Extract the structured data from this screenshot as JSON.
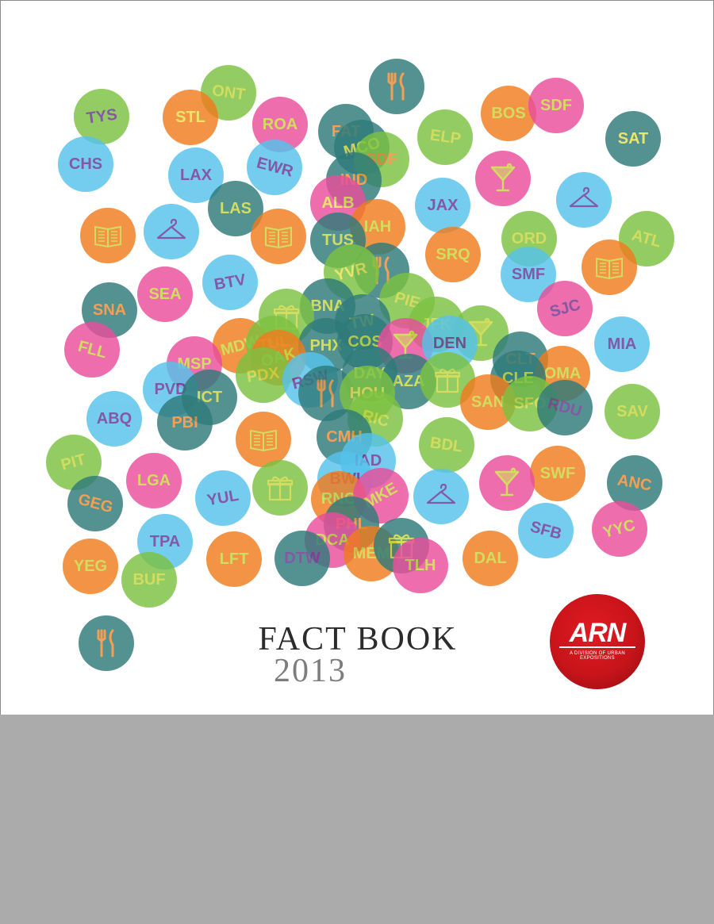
{
  "palette": {
    "orange": "#f07c1e",
    "green": "#7cc242",
    "pink": "#ea4e9c",
    "blue": "#56c3ec",
    "teal": "#2f7b7a",
    "text_purple": "#6a3591",
    "text_yellow": "#e8e04d",
    "text_olive": "#c9d53b",
    "text_orange": "#f28a2e",
    "brand_red": "#d0161c",
    "gray_band": "#ababab"
  },
  "cover": {
    "title": "FACT BOOK",
    "year": "2013",
    "logo": {
      "mark": "ARN",
      "subtitle": "A DIVISION OF URBAN EXPOSITIONS"
    }
  },
  "circles": [
    {
      "label": "TYS",
      "bg": "green",
      "fg": "text_purple"
    },
    {
      "label": "ONT",
      "bg": "green",
      "fg": "text_olive"
    },
    {
      "label": "STL",
      "bg": "orange",
      "fg": "text_yellow"
    },
    {
      "label": "ROA",
      "bg": "pink",
      "fg": "text_olive"
    },
    {
      "label": "fork-knife-icon",
      "bg": "teal",
      "fg": "text_orange"
    },
    {
      "label": "BOS",
      "bg": "orange",
      "fg": "text_olive"
    },
    {
      "label": "SDF",
      "bg": "pink",
      "fg": "text_olive"
    },
    {
      "label": "SAT",
      "bg": "teal",
      "fg": "text_yellow"
    },
    {
      "label": "CHS",
      "bg": "blue",
      "fg": "text_purple"
    },
    {
      "label": "FAT",
      "bg": "teal",
      "fg": "text_orange"
    },
    {
      "label": "MCO",
      "bg": "teal",
      "fg": "text_yellow"
    },
    {
      "label": "SDF",
      "bg": "green",
      "fg": "text_orange"
    },
    {
      "label": "ELP",
      "bg": "green",
      "fg": "text_olive"
    },
    {
      "label": "LAX",
      "bg": "blue",
      "fg": "text_purple"
    },
    {
      "label": "EWR",
      "bg": "blue",
      "fg": "text_purple"
    },
    {
      "label": "IND",
      "bg": "teal",
      "fg": "text_orange"
    },
    {
      "label": "martini-glass-icon",
      "bg": "pink",
      "fg": "text_olive"
    },
    {
      "label": "JAX",
      "bg": "blue",
      "fg": "text_purple"
    },
    {
      "label": "hanger-icon",
      "bg": "blue",
      "fg": "text_purple"
    },
    {
      "label": "LAS",
      "bg": "teal",
      "fg": "text_olive"
    },
    {
      "label": "ALB",
      "bg": "pink",
      "fg": "text_yellow"
    },
    {
      "label": "IAH",
      "bg": "orange",
      "fg": "text_olive"
    },
    {
      "label": "book-icon",
      "bg": "orange",
      "fg": "text_olive"
    },
    {
      "label": "hanger-icon",
      "bg": "blue",
      "fg": "text_purple"
    },
    {
      "label": "book-icon",
      "bg": "orange",
      "fg": "text_olive"
    },
    {
      "label": "TUS",
      "bg": "teal",
      "fg": "text_olive"
    },
    {
      "label": "SRQ",
      "bg": "orange",
      "fg": "text_olive"
    },
    {
      "label": "ORD",
      "bg": "green",
      "fg": "text_olive"
    },
    {
      "label": "ATL",
      "bg": "green",
      "fg": "text_olive"
    },
    {
      "label": "SMF",
      "bg": "blue",
      "fg": "text_purple"
    },
    {
      "label": "book-icon",
      "bg": "orange",
      "fg": "text_olive"
    },
    {
      "label": "fork-knife-icon",
      "bg": "teal",
      "fg": "text_orange"
    },
    {
      "label": "YVR",
      "bg": "green",
      "fg": "text_yellow"
    },
    {
      "label": "BTV",
      "bg": "blue",
      "fg": "text_purple"
    },
    {
      "label": "SEA",
      "bg": "pink",
      "fg": "text_olive"
    },
    {
      "label": "SNA",
      "bg": "teal",
      "fg": "text_orange"
    },
    {
      "label": "PIE",
      "bg": "green",
      "fg": "text_olive"
    },
    {
      "label": "BNA",
      "bg": "teal",
      "fg": "text_olive"
    },
    {
      "label": "gift-icon",
      "bg": "green",
      "fg": "text_olive"
    },
    {
      "label": "TW",
      "bg": "teal",
      "fg": "text_olive"
    },
    {
      "label": "SJC",
      "bg": "pink",
      "fg": "text_purple"
    },
    {
      "label": "JFK",
      "bg": "green",
      "fg": "text_olive"
    },
    {
      "label": "martini-glass-icon",
      "bg": "green",
      "fg": "text_olive"
    },
    {
      "label": "FLL",
      "bg": "pink",
      "fg": "text_olive"
    },
    {
      "label": "MIA",
      "bg": "blue",
      "fg": "text_purple"
    },
    {
      "label": "MDW",
      "bg": "orange",
      "fg": "text_olive"
    },
    {
      "label": "TUL",
      "bg": "green",
      "fg": "text_olive"
    },
    {
      "label": "PHX",
      "bg": "teal",
      "fg": "text_olive"
    },
    {
      "label": "COS",
      "bg": "teal",
      "fg": "text_olive"
    },
    {
      "label": "martini-glass-icon",
      "bg": "pink",
      "fg": "text_olive"
    },
    {
      "label": "DEN",
      "bg": "blue",
      "fg": "text_purple"
    },
    {
      "label": "CLT",
      "bg": "teal",
      "fg": "text_orange"
    },
    {
      "label": "OMA",
      "bg": "orange",
      "fg": "text_olive"
    },
    {
      "label": "MSP",
      "bg": "pink",
      "fg": "text_olive"
    },
    {
      "label": "OAK",
      "bg": "orange",
      "fg": "text_olive"
    },
    {
      "label": "PDX",
      "bg": "green",
      "fg": "text_olive"
    },
    {
      "label": "RSW",
      "bg": "blue",
      "fg": "text_purple"
    },
    {
      "label": "DAY",
      "bg": "teal",
      "fg": "text_olive"
    },
    {
      "label": "AZA",
      "bg": "teal",
      "fg": "text_olive"
    },
    {
      "label": "gift-icon",
      "bg": "green",
      "fg": "text_olive"
    },
    {
      "label": "CLE",
      "bg": "teal",
      "fg": "text_olive"
    },
    {
      "label": "PVD",
      "bg": "blue",
      "fg": "text_purple"
    },
    {
      "label": "ICT",
      "bg": "teal",
      "fg": "text_olive"
    },
    {
      "label": "fork-knife-icon",
      "bg": "teal",
      "fg": "text_orange"
    },
    {
      "label": "HOU",
      "bg": "green",
      "fg": "text_yellow"
    },
    {
      "label": "SAN",
      "bg": "orange",
      "fg": "text_olive"
    },
    {
      "label": "SFO",
      "bg": "green",
      "fg": "text_olive"
    },
    {
      "label": "RDU",
      "bg": "teal",
      "fg": "text_purple"
    },
    {
      "label": "SAV",
      "bg": "green",
      "fg": "text_olive"
    },
    {
      "label": "ABQ",
      "bg": "blue",
      "fg": "text_purple"
    },
    {
      "label": "PBI",
      "bg": "teal",
      "fg": "text_orange"
    },
    {
      "label": "RIC",
      "bg": "green",
      "fg": "text_olive"
    },
    {
      "label": "book-icon",
      "bg": "orange",
      "fg": "text_olive"
    },
    {
      "label": "CMH",
      "bg": "teal",
      "fg": "text_orange"
    },
    {
      "label": "BDL",
      "bg": "green",
      "fg": "text_olive"
    },
    {
      "label": "PIT",
      "bg": "green",
      "fg": "text_olive"
    },
    {
      "label": "IAD",
      "bg": "blue",
      "fg": "text_purple"
    },
    {
      "label": "LGA",
      "bg": "pink",
      "fg": "text_olive"
    },
    {
      "label": "SWF",
      "bg": "orange",
      "fg": "text_olive"
    },
    {
      "label": "martini-glass-icon",
      "bg": "pink",
      "fg": "text_olive"
    },
    {
      "label": "ANC",
      "bg": "teal",
      "fg": "text_orange"
    },
    {
      "label": "GEG",
      "bg": "teal",
      "fg": "text_orange"
    },
    {
      "label": "YUL",
      "bg": "blue",
      "fg": "text_purple"
    },
    {
      "label": "gift-icon",
      "bg": "green",
      "fg": "text_olive"
    },
    {
      "label": "BWI",
      "bg": "blue",
      "fg": "text_purple"
    },
    {
      "label": "hanger-icon",
      "bg": "blue",
      "fg": "text_purple"
    },
    {
      "label": "RNO",
      "bg": "orange",
      "fg": "text_olive"
    },
    {
      "label": "MKE",
      "bg": "pink",
      "fg": "text_olive"
    },
    {
      "label": "SFB",
      "bg": "blue",
      "fg": "text_purple"
    },
    {
      "label": "YYC",
      "bg": "pink",
      "fg": "text_olive"
    },
    {
      "label": "PHL",
      "bg": "teal",
      "fg": "text_orange"
    },
    {
      "label": "TPA",
      "bg": "blue",
      "fg": "text_purple"
    },
    {
      "label": "DCA",
      "bg": "pink",
      "fg": "text_olive"
    },
    {
      "label": "MEM",
      "bg": "orange",
      "fg": "text_olive"
    },
    {
      "label": "gift-icon",
      "bg": "teal",
      "fg": "text_olive"
    },
    {
      "label": "TLH",
      "bg": "pink",
      "fg": "text_olive"
    },
    {
      "label": "DAL",
      "bg": "orange",
      "fg": "text_olive"
    },
    {
      "label": "LFT",
      "bg": "orange",
      "fg": "text_olive"
    },
    {
      "label": "DTW",
      "bg": "teal",
      "fg": "text_purple"
    },
    {
      "label": "YEG",
      "bg": "orange",
      "fg": "text_olive"
    },
    {
      "label": "BUF",
      "bg": "green",
      "fg": "text_olive"
    },
    {
      "label": "fork-knife-icon",
      "bg": "teal",
      "fg": "text_orange"
    }
  ]
}
